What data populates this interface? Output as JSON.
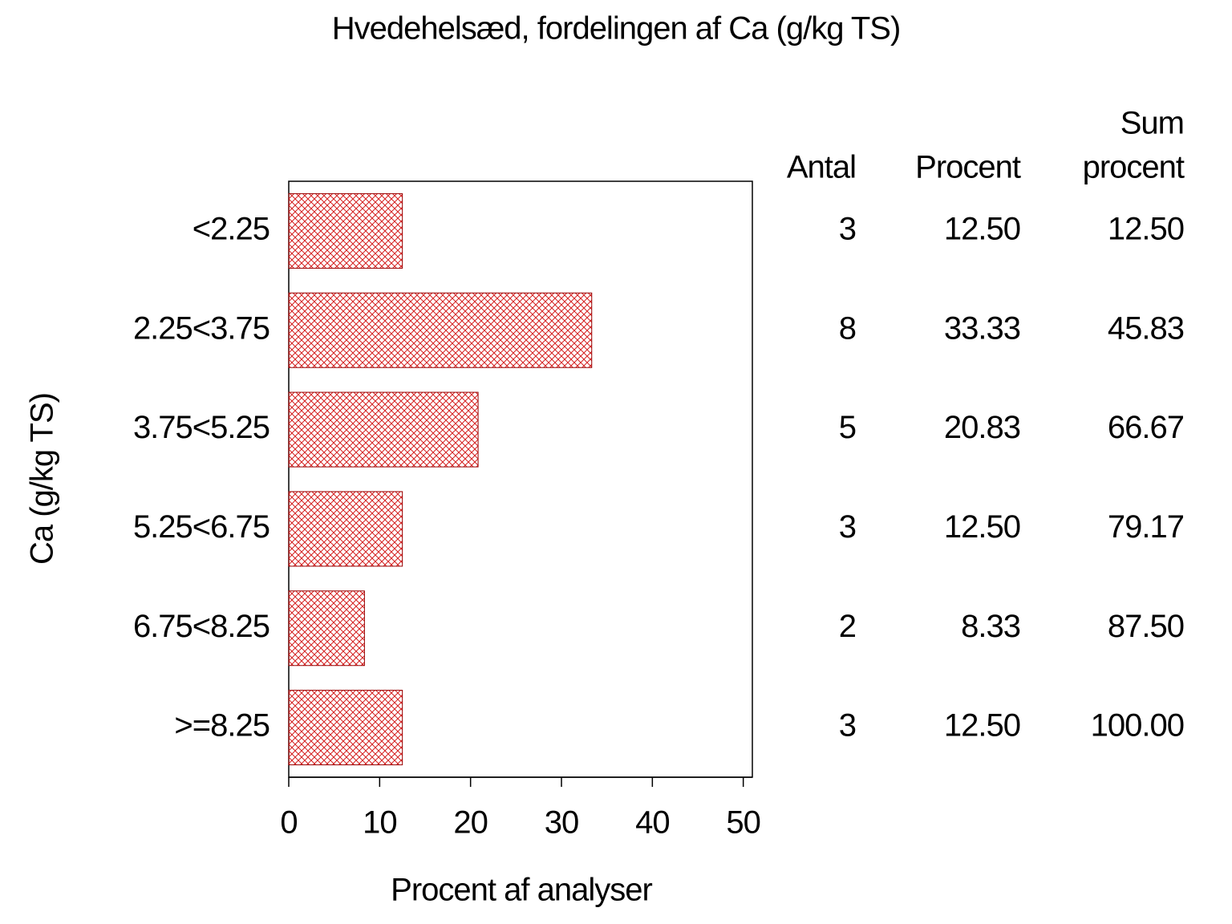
{
  "chart_data": {
    "type": "bar",
    "orientation": "horizontal",
    "title": "Hvedehelsæd, fordelingen af Ca (g/kg TS)",
    "x_label": "Procent af analyser",
    "y_label": "Ca (g/kg TS)",
    "categories": [
      "<2.25",
      "2.25<3.75",
      "3.75<5.25",
      "5.25<6.75",
      "6.75<8.25",
      ">=8.25"
    ],
    "values": [
      12.5,
      33.33,
      20.83,
      12.5,
      8.33,
      12.5
    ],
    "value_labels": [
      "12.50",
      "33.33",
      "20.83",
      "12.50",
      "8.33",
      "12.50"
    ],
    "color": "#d42020",
    "xlim": [
      0,
      51
    ],
    "xticks": [
      0,
      10,
      20,
      30,
      40,
      50
    ],
    "table": {
      "headers": [
        [
          "Antal"
        ],
        [
          "Procent"
        ],
        [
          "Sum",
          "procent"
        ]
      ],
      "counts": [
        3,
        8,
        5,
        3,
        2,
        3
      ],
      "cumulative": [
        12.5,
        45.83,
        66.67,
        79.17,
        87.5,
        100
      ],
      "cumulative_labels": [
        "12.50",
        "45.83",
        "66.67",
        "79.17",
        "87.50",
        "100.00"
      ]
    }
  }
}
